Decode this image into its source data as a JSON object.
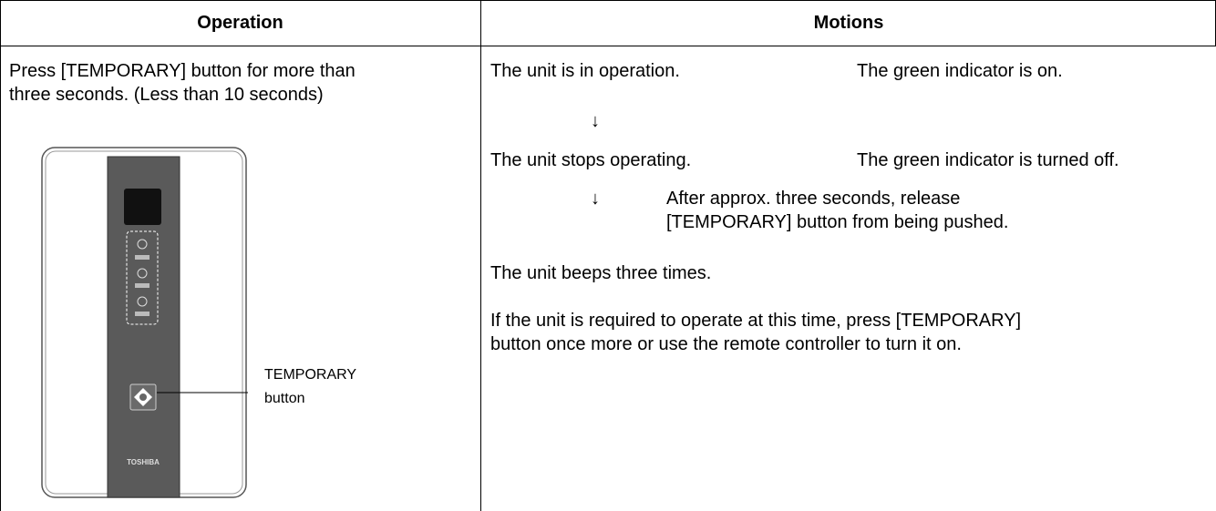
{
  "table": {
    "headers": [
      "Operation",
      "Motions"
    ],
    "operation": {
      "instruction": [
        "Press [TEMPORARY] button for more than",
        "three seconds. (Less than 10 seconds)"
      ],
      "callout": [
        "TEMPORARY",
        "button"
      ],
      "logo": "TOSHIBA"
    },
    "motions": {
      "row1": [
        "The unit is in operation.",
        "The green indicator is on."
      ],
      "arrow1": "↓",
      "row2": [
        "The unit stops operating.",
        "The green indicator is turned off."
      ],
      "arrow2": "↓",
      "note": [
        "After approx. three seconds, release",
        "[TEMPORARY] button from being pushed."
      ],
      "row3": "The unit beeps three times.",
      "row4": [
        "If the unit is required to operate at this time, press [TEMPORARY]",
        "button once more or use the remote controller to turn it on."
      ]
    }
  }
}
